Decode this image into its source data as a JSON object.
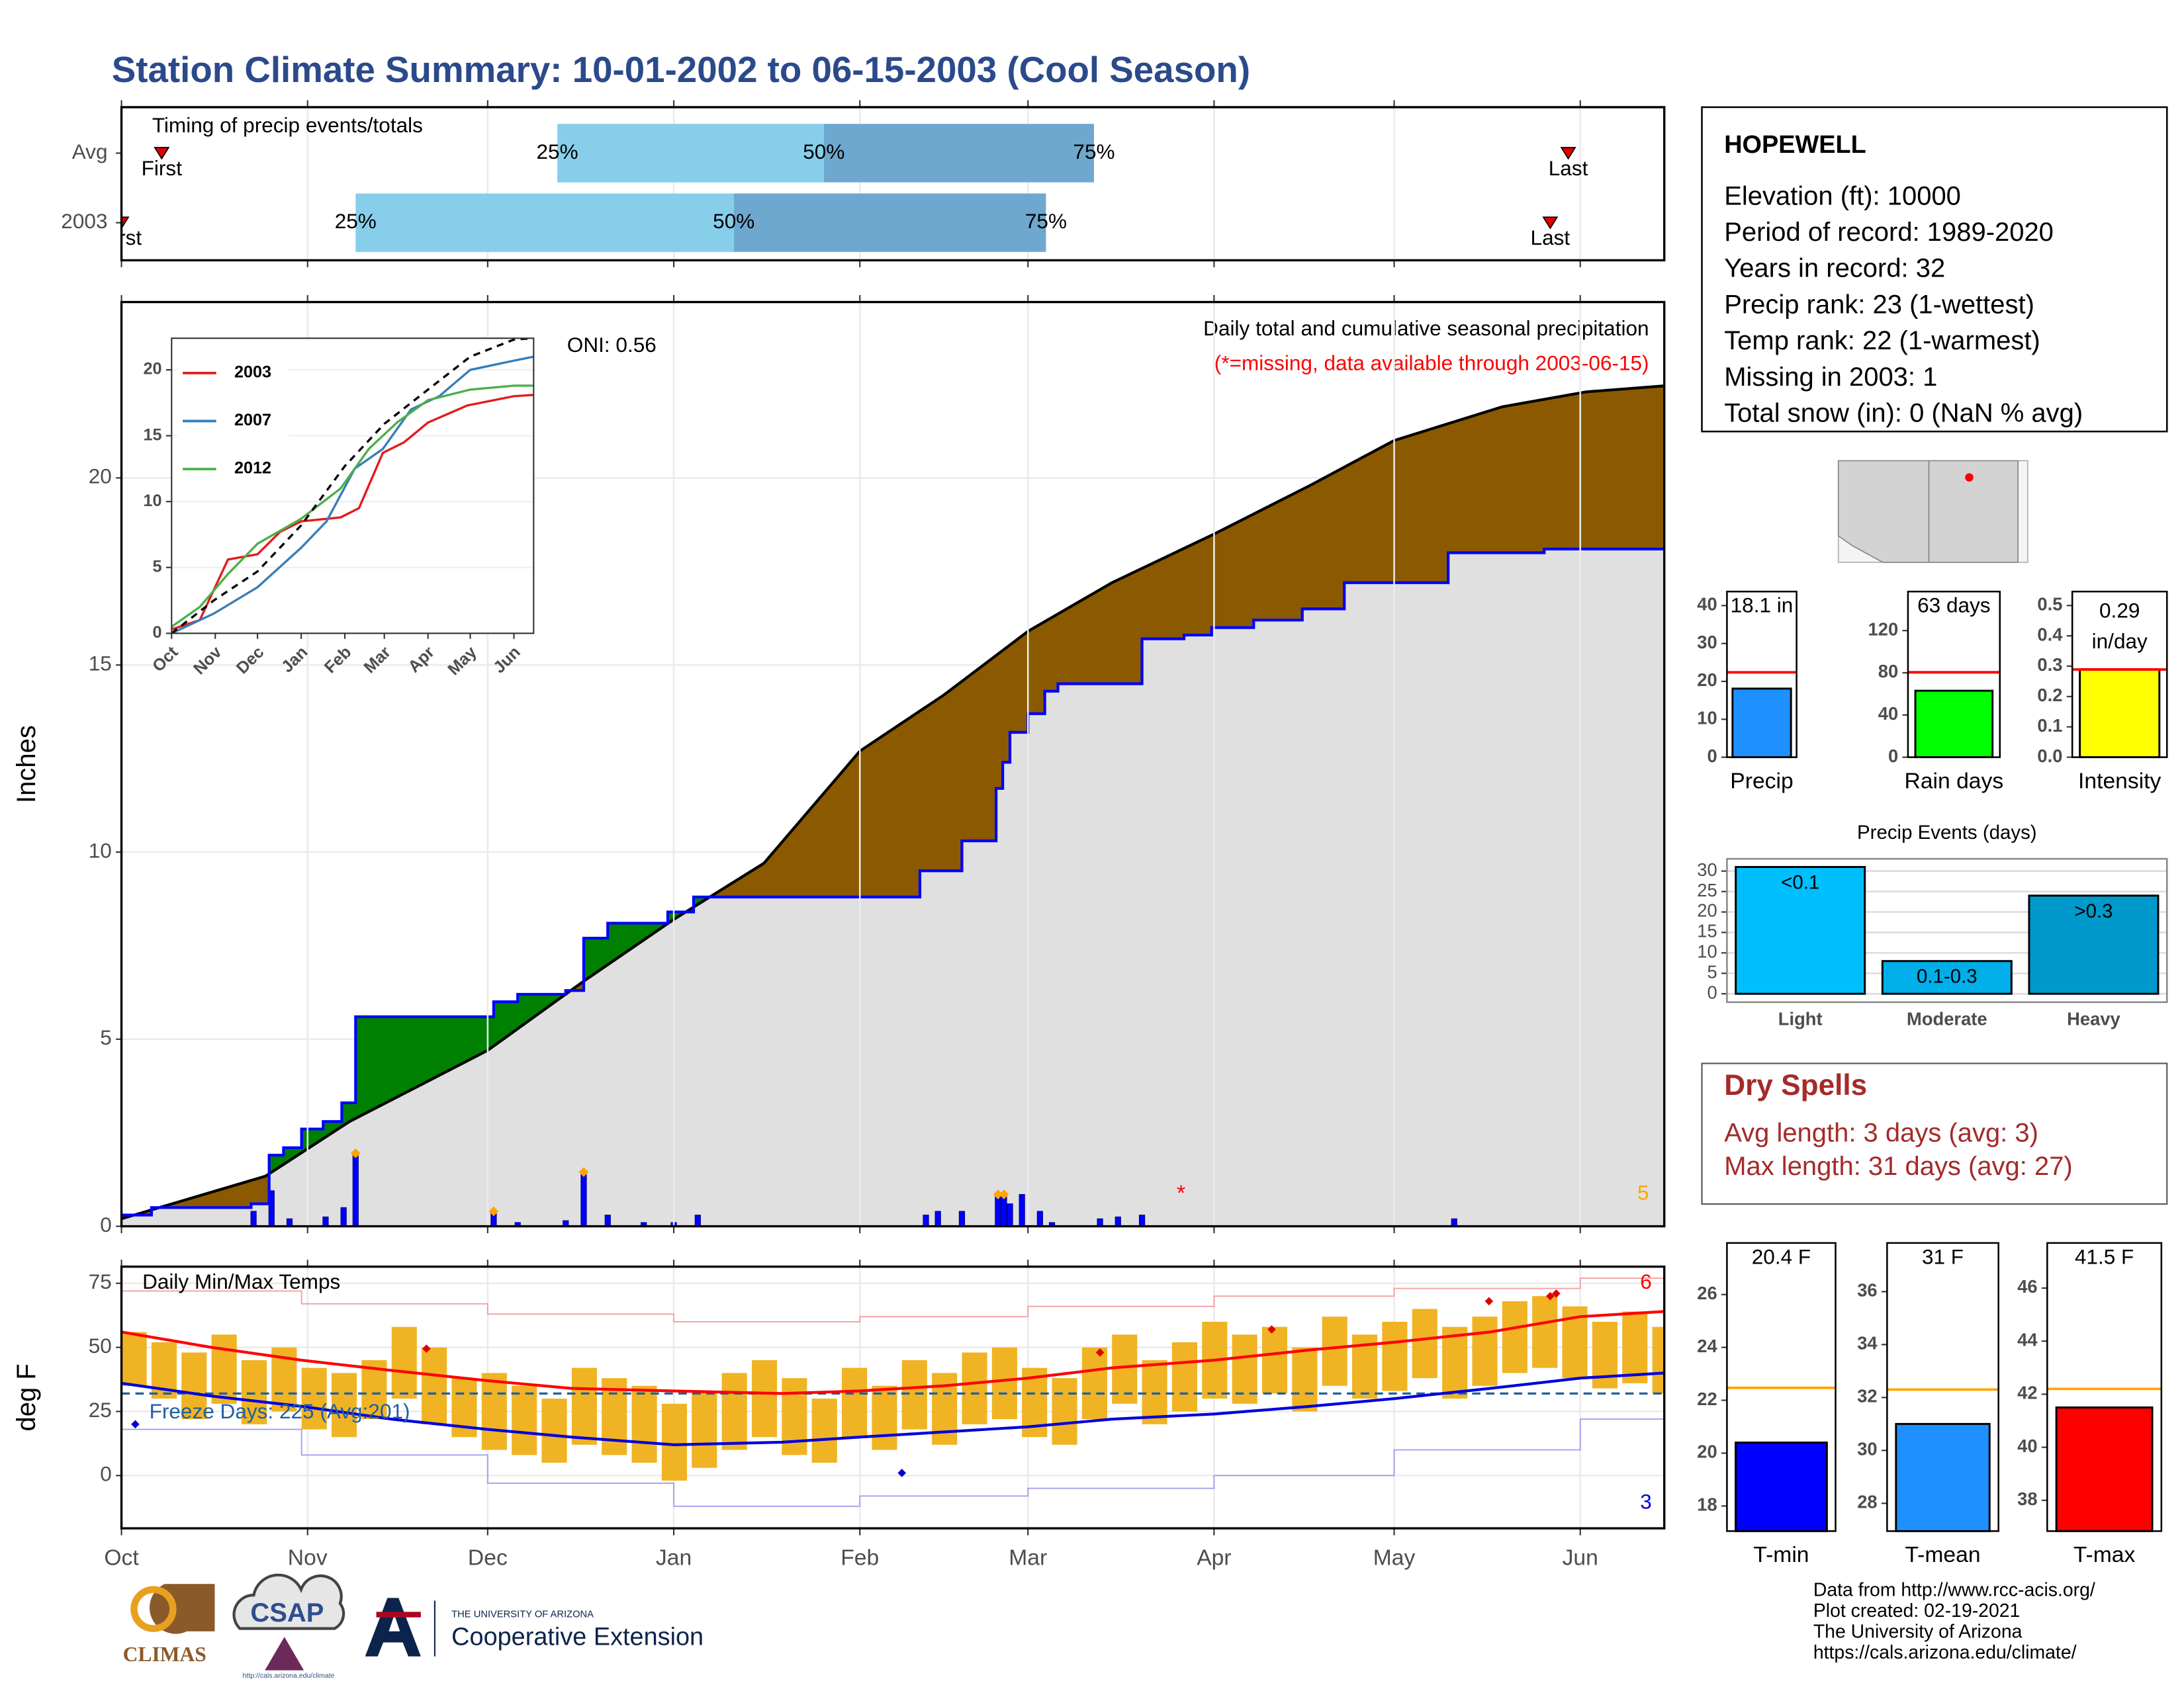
{
  "title": "Station Climate Summary: 10-01-2002 to 06-15-2003 (Cool Season)",
  "station": {
    "name": "HOPEWELL",
    "lines": [
      "Elevation (ft): 10000",
      "Period of record: 1989-2020",
      "Years in record: 32",
      "Precip rank: 23 (1-wettest)",
      "Temp rank: 22 (1-warmest)",
      "Missing in 2003: 1",
      "Total snow (in): 0 (NaN % avg)"
    ]
  },
  "dry_spells": {
    "title": "Dry Spells",
    "lines": [
      "Avg length: 3 days (avg: 3)",
      "Max length: 31 days (avg: 27)"
    ]
  },
  "footer": [
    "Data from http://www.rcc-acis.org/",
    "Plot created: 02-19-2021",
    "The University of Arizona",
    "https://cals.arizona.edu/climate/"
  ],
  "logos": {
    "climas": "CLIMAS",
    "csap": "CSAP",
    "csap_url": "http://cals.arizona.edu/climate",
    "ua": "THE UNIVERSITY OF ARIZONA",
    "ua_unit": "Cooperative Extension"
  },
  "chart_data": [
    {
      "type": "timeline",
      "title": "Timing of precip events/totals",
      "categories": [
        "Avg",
        "2003"
      ],
      "xlim": [
        0,
        257
      ],
      "quantile_labels": [
        "25%",
        "50%",
        "75%"
      ],
      "first_label": "First",
      "last_label": "Last",
      "rows": [
        {
          "quantiles": [
            72.6,
            117,
            162
          ],
          "first": 6.7,
          "last": 241
        },
        {
          "quantiles": [
            39,
            102,
            154
          ],
          "first": 0,
          "last": 238
        }
      ],
      "colors": [
        "#87ceeb",
        "#6fa8cf"
      ],
      "marker_color": "#e00000"
    },
    {
      "type": "area",
      "title": "Daily total and cumulative seasonal precipitation",
      "subtitle": "(*=missing, data available through 2003-06-15)",
      "annotation": "ONI: 0.56",
      "count_label": "5",
      "y_label": "Inches",
      "xlim": [
        0,
        257
      ],
      "ylim": [
        0,
        24.7
      ],
      "yticks": [
        0,
        5,
        10,
        15,
        20
      ],
      "grid": true,
      "average": {
        "color": "#000000",
        "x": [
          0,
          24,
          38,
          61,
          77,
          92,
          107,
          123,
          137,
          151,
          165,
          182,
          198,
          212,
          230,
          244,
          257
        ],
        "values": [
          0.2,
          1.34,
          2.8,
          4.7,
          6.55,
          8.2,
          9.7,
          12.7,
          14.2,
          15.9,
          17.2,
          18.5,
          19.8,
          21.0,
          21.9,
          22.3,
          22.46
        ]
      },
      "observed": {
        "color": "#0000ff",
        "x": [
          0,
          5,
          21.6,
          24.6,
          27,
          30,
          33.6,
          36.7,
          39,
          62,
          66,
          74,
          77,
          81,
          91,
          95.3,
          133,
          140,
          145.7,
          146.8,
          148,
          151,
          153.8,
          156,
          170,
          177,
          181.6,
          188.6,
          196.7,
          203.7,
          221,
          237,
          257
        ],
        "values": [
          0.3,
          0.5,
          0.6,
          1.9,
          2.1,
          2.6,
          2.8,
          3.3,
          5.6,
          6.0,
          6.2,
          6.3,
          7.7,
          8.1,
          8.4,
          8.8,
          9.5,
          10.3,
          11.7,
          12.4,
          13.2,
          13.7,
          14.3,
          14.5,
          15.7,
          15.8,
          16.0,
          16.2,
          16.5,
          17.2,
          18.0,
          18.1,
          18.1
        ]
      },
      "daily": {
        "color": "#0000ff",
        "x": [
          22,
          25,
          28,
          34,
          37,
          39,
          62,
          66,
          74,
          77,
          81,
          87,
          92,
          96,
          134,
          136,
          140,
          146,
          147,
          148,
          150,
          153,
          155,
          163,
          166,
          170,
          222
        ],
        "values": [
          0.4,
          0.95,
          0.2,
          0.25,
          0.5,
          1.9,
          0.35,
          0.1,
          0.15,
          1.4,
          0.3,
          0.1,
          0.1,
          0.3,
          0.3,
          0.4,
          0.4,
          0.8,
          0.85,
          0.6,
          0.85,
          0.4,
          0.1,
          0.2,
          0.25,
          0.3,
          0.2
        ]
      },
      "records": {
        "color": "#ffa500",
        "x": [
          39,
          62,
          77,
          146,
          147
        ],
        "values": [
          1.95,
          0.4,
          1.45,
          0.85,
          0.85
        ]
      },
      "missing": {
        "color": "#ff0000",
        "label": "*",
        "x": [
          176.5
        ],
        "values": [
          1.0
        ]
      },
      "fills": {
        "deficit": "#8b5a00",
        "surplus": "#008000",
        "base": "#e0e0e0"
      },
      "count_color": "#ffa500",
      "subtitle_color": "#ff0000"
    },
    {
      "type": "line",
      "xlim": [
        0,
        257
      ],
      "ylim": [
        0,
        22.4
      ],
      "yticks": [
        0,
        5,
        10,
        15,
        20
      ],
      "xticks": [
        {
          "value": 0,
          "label": "Oct"
        },
        {
          "value": 31,
          "label": "Nov"
        },
        {
          "value": 61,
          "label": "Dec"
        },
        {
          "value": 92,
          "label": "Jan"
        },
        {
          "value": 123,
          "label": "Feb"
        },
        {
          "value": 151,
          "label": "Mar"
        },
        {
          "value": 182,
          "label": "Apr"
        },
        {
          "value": 212,
          "label": "May"
        },
        {
          "value": 243,
          "label": "Jun"
        }
      ],
      "average": {
        "color": "#000000",
        "x": [
          0,
          30,
          61,
          92,
          123,
          151,
          182,
          212,
          243,
          257
        ],
        "values": [
          0,
          2.5,
          4.7,
          8.2,
          12.7,
          15.9,
          18.5,
          21.0,
          22.3,
          22.4
        ]
      },
      "series": [
        {
          "name": "2003",
          "color": "#e41a1c",
          "x": [
            0,
            20,
            40,
            61,
            77,
            92,
            120,
            133,
            150,
            165,
            182,
            210,
            243,
            257
          ],
          "values": [
            0.3,
            1.0,
            5.6,
            6.0,
            7.7,
            8.5,
            8.8,
            9.5,
            13.7,
            14.5,
            16,
            17.3,
            18,
            18.1
          ]
        },
        {
          "name": "2007",
          "color": "#377eb8",
          "x": [
            0,
            10,
            30,
            61,
            92,
            110,
            130,
            150,
            170,
            190,
            212,
            243,
            257
          ],
          "values": [
            0,
            0.5,
            1.5,
            3.5,
            6.5,
            8.5,
            12.5,
            14,
            17,
            18,
            20,
            20.7,
            21
          ]
        },
        {
          "name": "2012",
          "color": "#4daf4a",
          "x": [
            0,
            20,
            40,
            61,
            92,
            120,
            140,
            160,
            182,
            212,
            243,
            257
          ],
          "values": [
            0.5,
            2,
            4.5,
            6.8,
            8.7,
            11,
            14,
            16,
            17.7,
            18.5,
            18.8,
            18.8
          ]
        }
      ]
    },
    {
      "type": "climate",
      "title": "Daily Min/Max Temps",
      "y_label": "deg F",
      "annotation": "Freeze Days: 225 (Avg:201)",
      "high_count": "6",
      "low_count": "3",
      "xlim": [
        0,
        257
      ],
      "ylim": [
        -20.6,
        81.5
      ],
      "yticks": [
        0,
        25,
        50,
        75
      ],
      "freeze": 32,
      "grid": true,
      "xticks": [
        {
          "value": 0,
          "label": "Oct"
        },
        {
          "value": 31,
          "label": "Nov"
        },
        {
          "value": 61,
          "label": "Dec"
        },
        {
          "value": 92,
          "label": "Jan"
        },
        {
          "value": 123,
          "label": "Feb"
        },
        {
          "value": 151,
          "label": "Mar"
        },
        {
          "value": 182,
          "label": "Apr"
        },
        {
          "value": 212,
          "label": "May"
        },
        {
          "value": 243,
          "label": "Jun"
        }
      ],
      "daily": {
        "color": "#f0b323",
        "x": [
          0,
          5,
          10,
          15,
          20,
          25,
          30,
          35,
          40,
          45,
          50,
          55,
          60,
          65,
          70,
          75,
          80,
          85,
          90,
          95,
          100,
          105,
          110,
          115,
          120,
          125,
          130,
          135,
          140,
          145,
          150,
          155,
          160,
          165,
          170,
          175,
          180,
          185,
          190,
          195,
          200,
          205,
          210,
          215,
          220,
          225,
          230,
          235,
          240,
          245,
          250,
          255
        ],
        "max": [
          56,
          52,
          48,
          55,
          45,
          50,
          42,
          40,
          45,
          58,
          50,
          38,
          40,
          35,
          30,
          42,
          38,
          35,
          28,
          33,
          40,
          45,
          38,
          30,
          42,
          35,
          45,
          40,
          48,
          50,
          42,
          38,
          50,
          55,
          45,
          52,
          60,
          55,
          58,
          50,
          62,
          55,
          60,
          65,
          58,
          62,
          68,
          70,
          66,
          60,
          64,
          58
        ],
        "min": [
          35,
          30,
          22,
          28,
          20,
          25,
          18,
          15,
          22,
          30,
          20,
          15,
          10,
          8,
          5,
          12,
          8,
          5,
          -2,
          3,
          10,
          15,
          8,
          5,
          15,
          10,
          18,
          12,
          20,
          22,
          15,
          12,
          22,
          28,
          20,
          25,
          30,
          28,
          32,
          25,
          35,
          30,
          33,
          38,
          30,
          35,
          40,
          42,
          38,
          34,
          36,
          32
        ]
      },
      "avg_max": {
        "color": "#ff0000",
        "x": [
          0,
          15,
          30,
          45,
          61,
          75,
          92,
          110,
          123,
          137,
          151,
          165,
          182,
          198,
          212,
          228,
          243,
          257
        ],
        "values": [
          56,
          50,
          45,
          41,
          37,
          34,
          33,
          32,
          33,
          35,
          38,
          42,
          45,
          49,
          52,
          56,
          62,
          64
        ]
      },
      "avg_min": {
        "color": "#0000dd",
        "x": [
          0,
          15,
          30,
          45,
          61,
          75,
          92,
          110,
          123,
          137,
          151,
          165,
          182,
          198,
          212,
          228,
          243,
          257
        ],
        "values": [
          36,
          31,
          27,
          22,
          18,
          15,
          12,
          13,
          15,
          17,
          19,
          22,
          24,
          27,
          30,
          34,
          38,
          40
        ]
      },
      "record_max": {
        "color": "#f4a0a0",
        "x": [
          0,
          30,
          61,
          92,
          123,
          151,
          182,
          212,
          243,
          257
        ],
        "values": [
          72,
          67,
          63,
          60,
          62,
          66,
          70,
          73,
          77,
          78
        ]
      },
      "record_min": {
        "color": "#a0a0f0",
        "x": [
          0,
          30,
          61,
          92,
          123,
          151,
          182,
          212,
          243,
          257
        ],
        "values": [
          18,
          8,
          -3,
          -12,
          -8,
          -5,
          0,
          10,
          22,
          28
        ]
      },
      "record_highs": {
        "color": "#e00000",
        "x": [
          50.8,
          163,
          191.6,
          227.8,
          238,
          239
        ],
        "values": [
          49.5,
          48,
          57,
          68,
          70,
          71
        ]
      },
      "record_lows": {
        "color": "#0000cc",
        "x": [
          2.3,
          130
        ],
        "values": [
          20,
          1
        ]
      },
      "freeze_color": "#1f5fa0"
    },
    {
      "type": "bar",
      "categories": [
        "Precip"
      ],
      "values": [
        18.1
      ],
      "value_labels": [
        "18.1 in"
      ],
      "color": "#1e90ff",
      "ylim": [
        0,
        43.7
      ],
      "yticks": [
        0,
        10,
        20,
        30,
        40
      ],
      "average": 22.4,
      "average_color": "#ff0000"
    },
    {
      "type": "bar",
      "categories": [
        "Rain days"
      ],
      "values": [
        63
      ],
      "value_labels": [
        "63 days"
      ],
      "color": "#00ff00",
      "ylim": [
        0,
        157
      ],
      "yticks": [
        0,
        40,
        80,
        120
      ],
      "average": 80.5,
      "average_color": "#ff0000"
    },
    {
      "type": "bar",
      "categories": [
        "Intensity"
      ],
      "values": [
        0.29
      ],
      "value_labels": [
        "0.29 in/day"
      ],
      "color": "#ffff00",
      "ylim": [
        0,
        0.546
      ],
      "yticks": [
        {
          "value": 0,
          "label": "0.0"
        },
        0.1,
        0.2,
        0.3,
        0.4,
        0.5
      ],
      "average": 0.289,
      "average_color": "#ff0000"
    },
    {
      "type": "bar",
      "title": "Precip Events (days)",
      "categories": [
        "Light",
        "Moderate",
        "Heavy"
      ],
      "values": [
        31,
        8,
        24
      ],
      "bin_labels": [
        "<0.1",
        "0.1-0.3",
        ">0.3"
      ],
      "colors": [
        "#00bfff",
        "#00aeea",
        "#0099cc"
      ],
      "ylim": [
        -2.05,
        33
      ],
      "yticks": [
        0,
        5,
        10,
        15,
        20,
        25,
        30
      ],
      "grid": true
    },
    {
      "type": "bar",
      "categories": [
        "T-min"
      ],
      "values": [
        20.4
      ],
      "value_labels": [
        "20.4 F"
      ],
      "color": "#0000ff",
      "ylim": [
        17.05,
        27.95
      ],
      "yticks": [
        18,
        20,
        22,
        24,
        26
      ],
      "average": 22.47,
      "average_color": "#ffa500"
    },
    {
      "type": "bar",
      "categories": [
        "T-mean"
      ],
      "values": [
        31
      ],
      "value_labels": [
        "31 F"
      ],
      "color": "#1e90ff",
      "ylim": [
        26.95,
        37.84
      ],
      "yticks": [
        28,
        30,
        32,
        34,
        36
      ],
      "average": 32.3,
      "average_color": "#ffa500"
    },
    {
      "type": "bar",
      "categories": [
        "T-max"
      ],
      "values": [
        41.5
      ],
      "value_labels": [
        "41.5 F"
      ],
      "color": "#ff0000",
      "ylim": [
        36.84,
        47.7
      ],
      "yticks": [
        38,
        40,
        42,
        44,
        46
      ],
      "average": 42.2,
      "average_color": "#ffa500"
    }
  ]
}
